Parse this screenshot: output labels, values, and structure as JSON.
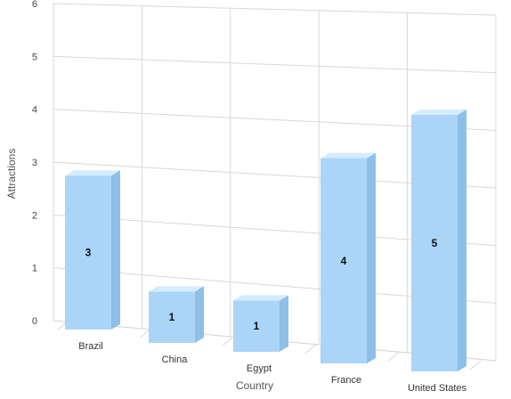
{
  "chart_data": {
    "type": "bar",
    "three_d": true,
    "categories": [
      "Brazil",
      "China",
      "Egypt",
      "France",
      "United States"
    ],
    "values": [
      3,
      1,
      1,
      4,
      5
    ],
    "title": "",
    "xlabel": "Country",
    "ylabel": "Attractions",
    "ylim": [
      0,
      6
    ],
    "yticks": [
      0,
      1,
      2,
      3,
      4,
      5,
      6
    ],
    "grid": true,
    "legend": "none",
    "colors": {
      "bar_front": "#abd5f7",
      "bar_side": "#8ebfe6",
      "bar_top": "#d4ecfc",
      "grid": "#d8d8d8"
    }
  }
}
